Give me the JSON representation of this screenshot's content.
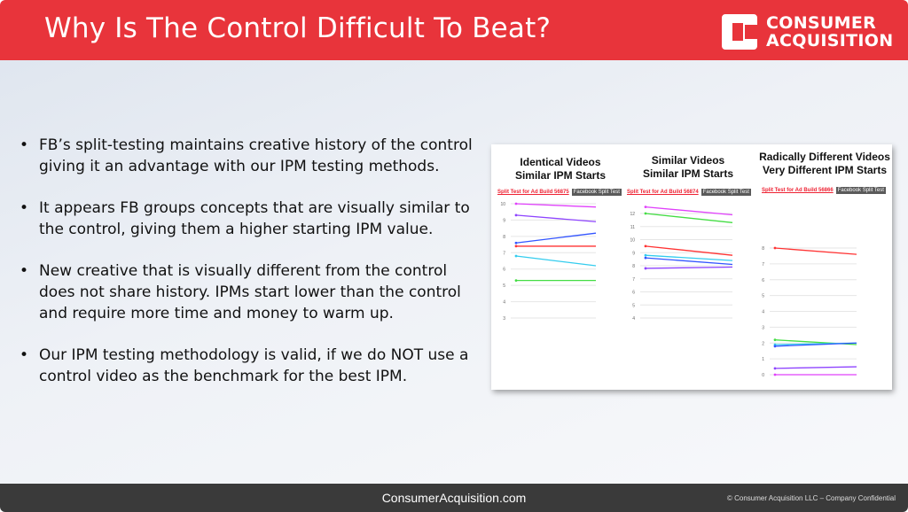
{
  "header": {
    "title": "Why Is The Control Difficult To Beat?",
    "logo_line1": "CONSUMER",
    "logo_line2": "ACQUISITION",
    "bg_color": "#e8343b"
  },
  "bullets": [
    "FB’s split-testing maintains creative history of the control giving it an advantage with our IPM testing methods.",
    "It appears FB groups concepts that are visually similar to the control, giving them a higher starting IPM value.",
    "New creative that is visually different from the control does not share history. IPMs start lower than the control and require more time and money to warm up.",
    "Our IPM testing methodology is valid, if we do NOT use a control video as the benchmark for the best IPM."
  ],
  "panel": {
    "columns": [
      {
        "title1": "Identical Videos",
        "title2": "Similar IPM Starts",
        "sub_red": "Split Test for Ad Build 56875",
        "sub_chip": "Facebook Split Test"
      },
      {
        "title1": "Similar Videos",
        "title2": "Similar IPM Starts",
        "sub_red": "Split Test for Ad Build 56874",
        "sub_chip": "Facebook Split Test"
      },
      {
        "title1": "Radically Different Videos",
        "title2": "Very Different IPM Starts",
        "sub_red": "Split Test for Ad Build 56866",
        "sub_chip": "Facebook Split Test"
      }
    ]
  },
  "chart_data": [
    {
      "type": "line",
      "title": "Identical Videos Similar IPM Starts",
      "yticks": [
        "10",
        "9",
        "8",
        "7",
        "6",
        "5",
        "4",
        "3"
      ],
      "ylim": [
        3,
        10
      ],
      "series": [
        {
          "color": "#e040fb",
          "values": [
            10.0,
            9.8
          ]
        },
        {
          "color": "#8e44ff",
          "values": [
            9.3,
            8.9
          ]
        },
        {
          "color": "#3355ff",
          "values": [
            7.6,
            8.2
          ]
        },
        {
          "color": "#ff3333",
          "values": [
            7.4,
            7.4
          ]
        },
        {
          "color": "#33ccee",
          "values": [
            6.8,
            6.2
          ]
        },
        {
          "color": "#44dd44",
          "values": [
            5.3,
            5.3
          ]
        }
      ]
    },
    {
      "type": "line",
      "title": "Similar Videos Similar IPM Starts",
      "yticks": [
        "12",
        "11",
        "10",
        "9",
        "8",
        "7",
        "6",
        "5",
        "4"
      ],
      "ylim": [
        4,
        12
      ],
      "series": [
        {
          "color": "#e040fb",
          "values": [
            12.5,
            11.9
          ]
        },
        {
          "color": "#44dd44",
          "values": [
            12.0,
            11.3
          ]
        },
        {
          "color": "#ff3333",
          "values": [
            9.5,
            8.8
          ]
        },
        {
          "color": "#33ccee",
          "values": [
            8.8,
            8.4
          ]
        },
        {
          "color": "#3355ff",
          "values": [
            8.6,
            8.1
          ]
        },
        {
          "color": "#8e44ff",
          "values": [
            7.8,
            7.9
          ]
        }
      ]
    },
    {
      "type": "line",
      "title": "Radically Different Videos Very Different IPM Starts",
      "yticks": [
        "8",
        "7",
        "6",
        "5",
        "4",
        "3",
        "2",
        "1",
        "0"
      ],
      "ylim": [
        0,
        8
      ],
      "series": [
        {
          "color": "#ff3333",
          "values": [
            8.0,
            7.6
          ]
        },
        {
          "color": "#44dd44",
          "values": [
            2.2,
            1.9
          ]
        },
        {
          "color": "#33ccee",
          "values": [
            1.9,
            2.0
          ]
        },
        {
          "color": "#3355ff",
          "values": [
            1.8,
            2.0
          ]
        },
        {
          "color": "#8e44ff",
          "values": [
            0.4,
            0.5
          ]
        },
        {
          "color": "#e040fb",
          "values": [
            0.0,
            0.0
          ]
        }
      ]
    }
  ],
  "footer": {
    "site": "ConsumerAcquisition.com",
    "copyright": "© Consumer Acquisition LLC – Company Confidential"
  }
}
